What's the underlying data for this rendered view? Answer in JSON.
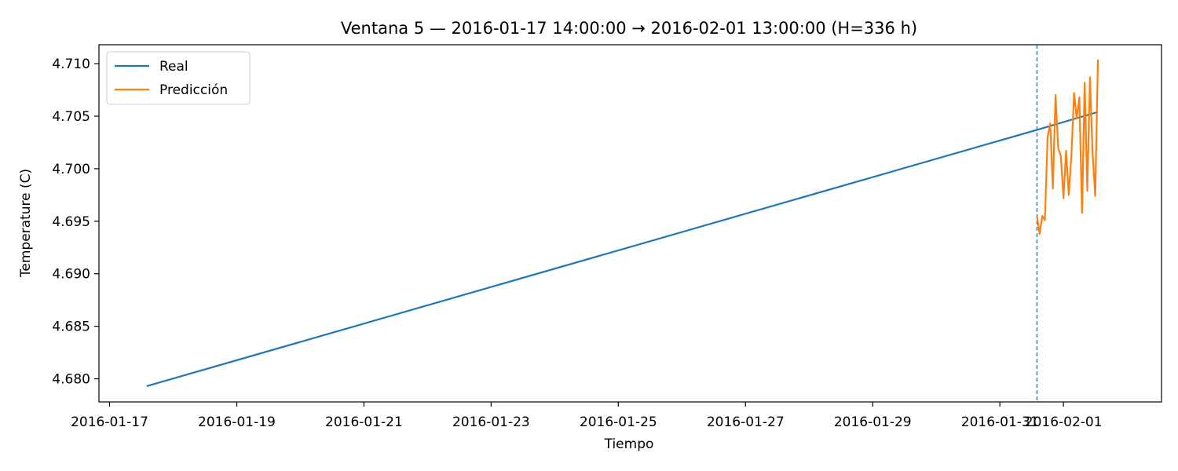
{
  "chart_data": {
    "type": "line",
    "title": "Ventana 5 — 2016-01-17 14:00:00 → 2016-02-01 13:00:00 (H=336 h)",
    "xlabel": "Tiempo",
    "ylabel": "Temperature (C)",
    "xlim": [
      "2016-01-16T20:00:00",
      "2016-02-02T13:00:00"
    ],
    "ylim": [
      4.6778,
      4.7118
    ],
    "x_ticks": [
      "2016-01-17",
      "2016-01-19",
      "2016-01-21",
      "2016-01-23",
      "2016-01-25",
      "2016-01-27",
      "2016-01-29",
      "2016-01-31",
      "2016-02-01"
    ],
    "y_ticks": [
      "4.680",
      "4.685",
      "4.690",
      "4.695",
      "4.700",
      "4.705",
      "4.710"
    ],
    "grid": false,
    "legend_position": "top-left",
    "forecast_start": "2016-01-31T14:00:00",
    "series": [
      {
        "name": "Real",
        "color": "#1f77b4",
        "points": [
          [
            "2016-01-17T14:00:00",
            4.6793
          ],
          [
            "2016-01-31T14:00:00",
            4.7037
          ],
          [
            "2016-02-01T13:00:00",
            4.7054
          ]
        ]
      },
      {
        "name": "Predicción",
        "color": "#ff7f0e",
        "points": [
          [
            "2016-01-31T14:00:00",
            4.6955
          ],
          [
            "2016-01-31T15:00:00",
            4.6938
          ],
          [
            "2016-01-31T16:00:00",
            4.6955
          ],
          [
            "2016-01-31T17:00:00",
            4.6951
          ],
          [
            "2016-01-31T18:00:00",
            4.703
          ],
          [
            "2016-01-31T19:00:00",
            4.7043
          ],
          [
            "2016-01-31T20:00:00",
            4.6981
          ],
          [
            "2016-01-31T21:00:00",
            4.707
          ],
          [
            "2016-01-31T22:00:00",
            4.702
          ],
          [
            "2016-01-31T23:00:00",
            4.7012
          ],
          [
            "2016-02-01T00:00:00",
            4.6972
          ],
          [
            "2016-02-01T01:00:00",
            4.7017
          ],
          [
            "2016-02-01T02:00:00",
            4.6975
          ],
          [
            "2016-02-01T03:00:00",
            4.7013
          ],
          [
            "2016-02-01T04:00:00",
            4.7072
          ],
          [
            "2016-02-01T05:00:00",
            4.7048
          ],
          [
            "2016-02-01T06:00:00",
            4.7068
          ],
          [
            "2016-02-01T07:00:00",
            4.6958
          ],
          [
            "2016-02-01T08:00:00",
            4.7082
          ],
          [
            "2016-02-01T09:00:00",
            4.6979
          ],
          [
            "2016-02-01T10:00:00",
            4.7087
          ],
          [
            "2016-02-01T11:00:00",
            4.7014
          ],
          [
            "2016-02-01T12:00:00",
            4.6974
          ],
          [
            "2016-02-01T13:00:00",
            4.7104
          ]
        ]
      }
    ]
  }
}
